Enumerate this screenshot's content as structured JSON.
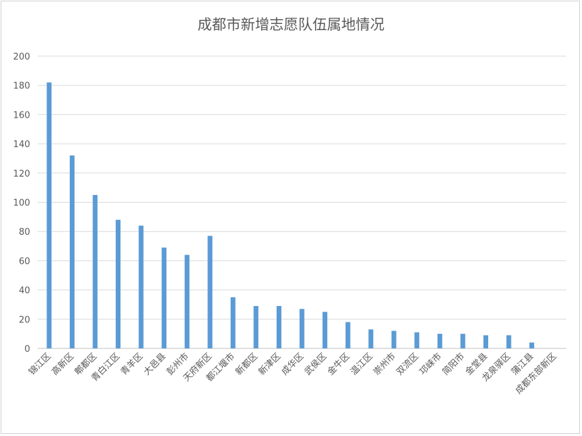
{
  "chart_data": {
    "type": "bar",
    "title": "成都市新增志愿队伍属地情况",
    "categories": [
      "锦江区",
      "高新区",
      "郫都区",
      "青白江区",
      "青羊区",
      "大邑县",
      "彭州市",
      "天府新区",
      "都江堰市",
      "新都区",
      "新津区",
      "成华区",
      "武侯区",
      "金牛区",
      "温江区",
      "崇州市",
      "双流区",
      "邛崃市",
      "简阳市",
      "金堂县",
      "龙泉驿区",
      "蒲江县",
      "成都东部新区"
    ],
    "values": [
      182,
      132,
      105,
      88,
      84,
      69,
      64,
      77,
      35,
      29,
      29,
      27,
      25,
      18,
      13,
      12,
      11,
      10,
      10,
      9,
      9,
      4,
      0
    ],
    "ylim": [
      0,
      200
    ],
    "yticks": [
      0,
      20,
      40,
      60,
      80,
      100,
      120,
      140,
      160,
      180,
      200
    ],
    "grid": true,
    "legend": "none",
    "bar_color": "#5b9bd5"
  }
}
